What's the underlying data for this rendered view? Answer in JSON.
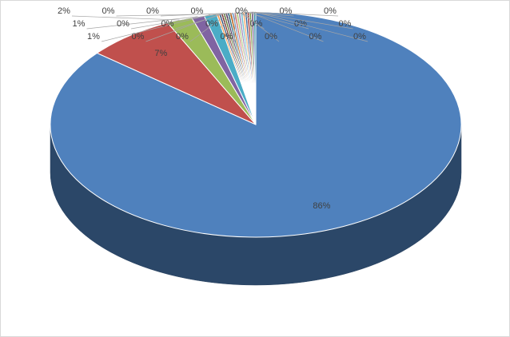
{
  "chart_data": {
    "type": "pie3d",
    "values": [
      86,
      7,
      2,
      1,
      1,
      0.17,
      0.17,
      0.17,
      0.17,
      0.17,
      0.17,
      0.17,
      0.17,
      0.17,
      0.17,
      0.17,
      0.17,
      0.17,
      0.17,
      0.17,
      0.17,
      0.17,
      0.17
    ],
    "value_labels": [
      "86%",
      "7%",
      "2%",
      "1%",
      "1%",
      "0%",
      "0%",
      "0%",
      "0%",
      "0%",
      "0%",
      "0%",
      "0%",
      "0%",
      "0%",
      "0%",
      "0%",
      "0%",
      "0%",
      "0%",
      "0%",
      "0%",
      "0%"
    ],
    "colors": [
      "#4f81bd",
      "#c0504d",
      "#9bbb59",
      "#8064a2",
      "#4bacc6",
      "#f79646",
      "#2c4d75",
      "#772c2a",
      "#5f7530",
      "#4d3b62",
      "#276a7c",
      "#b65708",
      "#729aca",
      "#cd7371",
      "#afc97a",
      "#9983b5",
      "#6fbdd1",
      "#f9ab6b",
      "#3a679c",
      "#9e3b38",
      "#7e9c40",
      "#664f83",
      "#358ea6"
    ]
  }
}
